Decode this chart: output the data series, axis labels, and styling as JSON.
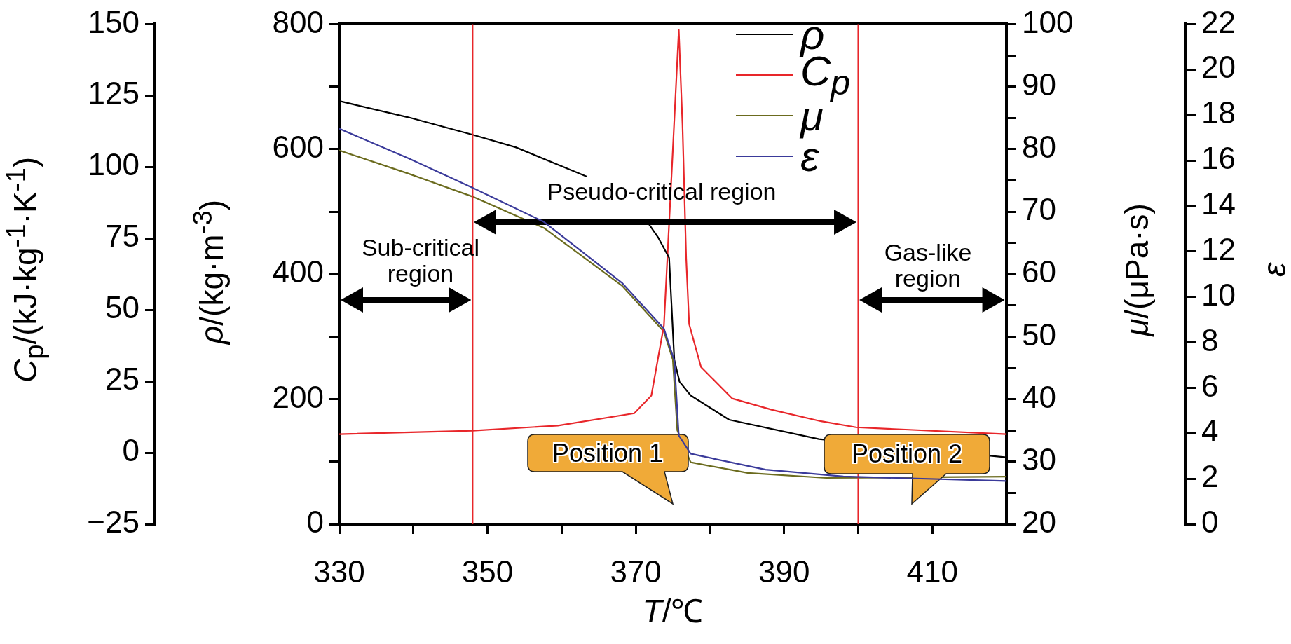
{
  "chart_data": [
    {
      "type": "line",
      "xlabel": "T/℃",
      "ylabel": "ρ/(kg·m$^{-3}$)",
      "y2label": "C$_{p}$/(kJ·kg$^{-1}$·K$^{-1}$)",
      "y3label": "μ/(μPa·s)",
      "xlim": [
        330,
        420
      ],
      "xticks": [
        330,
        {
          "value": 340,
          "label": null
        },
        350,
        {
          "value": 360,
          "label": null
        },
        370,
        {
          "value": 380,
          "label": null
        },
        390,
        {
          "value": 400,
          "label": null
        },
        410
      ],
      "ylim": [
        0,
        800
      ],
      "yticks": [
        0,
        {
          "value": 100,
          "label": null
        },
        200,
        {
          "value": 300,
          "label": null
        },
        400,
        {
          "value": 500,
          "label": null
        },
        600,
        {
          "value": 700,
          "label": null
        },
        800
      ],
      "y2lim": [
        -25,
        150
      ],
      "y2ticks": [
        {
          "value": -25,
          "label": "−25"
        },
        0,
        25,
        50,
        75,
        100,
        125,
        150
      ],
      "y3lim": [
        20,
        100
      ],
      "y3ticks": [
        20,
        {
          "value": 25,
          "label": null
        },
        30,
        {
          "value": 35,
          "label": null
        },
        40,
        {
          "value": 45,
          "label": null
        },
        50,
        {
          "value": 55,
          "label": null
        },
        60,
        {
          "value": 65,
          "label": null
        },
        70,
        {
          "value": 75,
          "label": null
        },
        80,
        {
          "value": 85,
          "label": null
        },
        90,
        {
          "value": 95,
          "label": null
        },
        100
      ],
      "series": [
        {
          "name": "ρ",
          "color": "#000000",
          "x": [
            330,
            339.3,
            348,
            353.8,
            363.4,
            367,
            371.3,
            373,
            374.5,
            375.2,
            375.9,
            377.4,
            382.6,
            394.7,
            420
          ],
          "values": [
            677,
            651,
            623,
            603,
            556,
            null,
            488,
            459,
            426,
            263,
            228,
            206,
            167,
            136,
            107
          ]
        },
        {
          "name": "C$_{p}$",
          "color": "#e8262a",
          "axis": "y2",
          "x": [
            330,
            348,
            359.5,
            369.8,
            372.1,
            373.8,
            375,
            375.8,
            376.3,
            376.8,
            377.2,
            378.8,
            383,
            388.4,
            395,
            399.7,
            420
          ],
          "values": [
            6.5,
            7.7,
            9.5,
            13.8,
            20,
            44.6,
            106,
            148,
            115,
            68,
            45,
            30,
            19,
            15,
            11,
            8.9,
            6.5
          ]
        },
        {
          "name": "μ",
          "color": "#6b6b1e",
          "axis": "y3",
          "x": [
            330,
            339.3,
            348,
            357.6,
            368.2,
            373.8,
            375,
            375.6,
            377.4,
            385.1,
            395.7,
            420
          ],
          "values": [
            79.8,
            76.1,
            72.4,
            67.4,
            58.1,
            50.8,
            46.3,
            35,
            29.9,
            28.2,
            27.4,
            27.6
          ]
        }
      ],
      "ref_lines": [
        {
          "axis": "x",
          "value": 348,
          "color": "#e8262a"
        },
        {
          "axis": "x",
          "value": 400,
          "color": "#e8262a"
        }
      ],
      "annotations": [
        "Sub-critical region",
        "Pseudo-critical region",
        "Gas-like region",
        "Position 1",
        "Position 2"
      ],
      "grid": false,
      "legend": "top right",
      "marker": "none",
      "line_style": "solid"
    },
    {
      "type": "line",
      "ylabel": "ε",
      "xlim": [
        330,
        420
      ],
      "ylim": [
        0,
        22
      ],
      "yticks": [
        0,
        2,
        4,
        6,
        8,
        10,
        12,
        14,
        16,
        18,
        20,
        22
      ],
      "tick_labels": "y",
      "series": [
        {
          "name": "ε",
          "color": "#3a3a9a",
          "x": [
            330,
            339.3,
            348,
            357.6,
            368.2,
            373.8,
            375.2,
            375.8,
            377.4,
            378.8,
            387.5,
            398,
            420
          ],
          "values": [
            17.4,
            16.1,
            14.8,
            13.3,
            10.6,
            8.6,
            7.2,
            3.9,
            3.1,
            3.0,
            2.4,
            2.1,
            1.9
          ]
        }
      ],
      "grid": false,
      "legend": "top right",
      "marker": "none",
      "line_style": "solid"
    }
  ]
}
